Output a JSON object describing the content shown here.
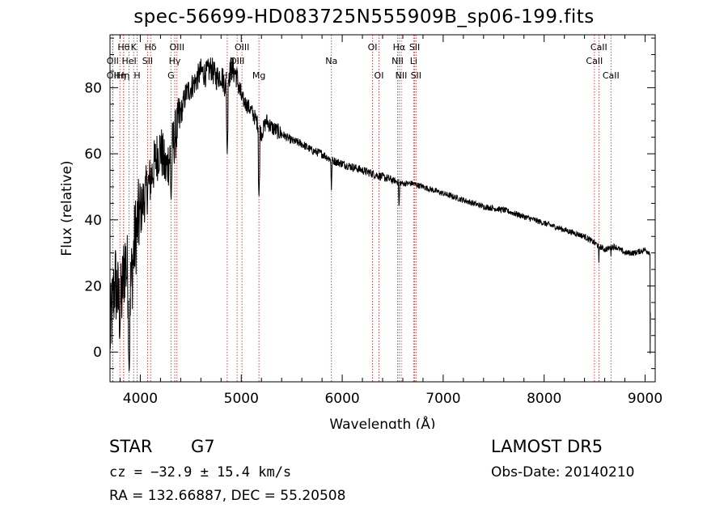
{
  "header": {
    "title": "spec-56699-HD083725N555909B_sp06-199.fits"
  },
  "info": {
    "obj_class": "STAR",
    "subclass": "G7",
    "survey": "LAMOST DR5",
    "cz": "cz = −32.9 ± 15.4 km/s",
    "obs_date": "Obs-Date: 20140210",
    "radec": "RA = 132.66887, DEC =  55.20508"
  },
  "chart_data": {
    "type": "line",
    "xlabel": "Wavelength (Å)",
    "ylabel": "Flux (relative)",
    "xlim": [
      3700,
      9100
    ],
    "ylim": [
      -9,
      96
    ],
    "xticks": [
      4000,
      5000,
      6000,
      7000,
      8000,
      9000
    ],
    "yticks": [
      0,
      20,
      40,
      60,
      80
    ],
    "grid": false,
    "line_color": "#000000",
    "marker_color": "#cc3333",
    "series": [
      {
        "x": [
          3700,
          3750,
          3800,
          3850,
          3900,
          3950,
          4000,
          4050,
          4100,
          4150,
          4200,
          4250,
          4300,
          4350,
          4400,
          4450,
          4500,
          4550,
          4600,
          4650,
          4700,
          4750,
          4800,
          4850,
          4900,
          4950,
          5000,
          5050,
          5100,
          5150,
          5200,
          5250,
          5300,
          5400,
          5500,
          5600,
          5700,
          5800,
          5900,
          6000,
          6100,
          6200,
          6300,
          6400,
          6500,
          6600,
          6700,
          6800,
          6900,
          7000,
          7200,
          7400,
          7600,
          7800,
          8000,
          8200,
          8400,
          8500,
          8600,
          8700,
          8800,
          8900,
          9000,
          9050
        ],
        "y": [
          5,
          22,
          12,
          28,
          18,
          35,
          42,
          48,
          52,
          58,
          62,
          55,
          60,
          66,
          72,
          78,
          80,
          82,
          85,
          84,
          86,
          83,
          84,
          80,
          86,
          84,
          77,
          75,
          73,
          70,
          66,
          70,
          68,
          66,
          64,
          63,
          61,
          60,
          58,
          57,
          56,
          55,
          54,
          53,
          52,
          51,
          51,
          50,
          49,
          48,
          46,
          44,
          43,
          41,
          39,
          37,
          35,
          33,
          31,
          32,
          30,
          30,
          31,
          30
        ]
      }
    ],
    "dips": [
      {
        "x": 3890,
        "y": -7
      },
      {
        "x": 4305,
        "y": 45
      },
      {
        "x": 4861,
        "y": 60
      },
      {
        "x": 5175,
        "y": 46
      },
      {
        "x": 5893,
        "y": 49
      },
      {
        "x": 6563,
        "y": 43
      },
      {
        "x": 8542,
        "y": 27
      },
      {
        "x": 8662,
        "y": 29
      }
    ],
    "lines": [
      {
        "x": 3727,
        "label": "OII",
        "row": 1
      },
      {
        "x": 3727,
        "label": "OII",
        "row": 2
      },
      {
        "x": 3798,
        "label": "Hη",
        "row": 2
      },
      {
        "x": 3835,
        "label": "Hη",
        "row": 2
      },
      {
        "x": 3835,
        "label": "Hθ",
        "row": 0
      },
      {
        "x": 3889,
        "label": "HeI",
        "row": 1
      },
      {
        "x": 3934,
        "label": "K",
        "row": 0
      },
      {
        "x": 3969,
        "label": "H",
        "row": 2
      },
      {
        "x": 4072,
        "label": "SII",
        "row": 1
      },
      {
        "x": 4102,
        "label": "Hδ",
        "row": 0
      },
      {
        "x": 4304,
        "label": "G",
        "row": 2
      },
      {
        "x": 4341,
        "label": "Hγ",
        "row": 1
      },
      {
        "x": 4363,
        "label": "OIII",
        "row": 0
      },
      {
        "x": 4861,
        "label": "Hβ",
        "row": 2
      },
      {
        "x": 4959,
        "label": "OIII",
        "row": 1
      },
      {
        "x": 5007,
        "label": "OIII",
        "row": 0
      },
      {
        "x": 5175,
        "label": "Mg",
        "row": 2
      },
      {
        "x": 5893,
        "label": "Na",
        "row": 1
      },
      {
        "x": 6300,
        "label": "OI",
        "row": 0
      },
      {
        "x": 6364,
        "label": "OI",
        "row": 2
      },
      {
        "x": 6548,
        "label": "NII",
        "row": 1
      },
      {
        "x": 6563,
        "label": "Hα",
        "row": 0
      },
      {
        "x": 6584,
        "label": "NII",
        "row": 2
      },
      {
        "x": 6707,
        "label": "Li",
        "row": 1
      },
      {
        "x": 6717,
        "label": "SII",
        "row": 0
      },
      {
        "x": 6731,
        "label": "SII",
        "row": 2
      },
      {
        "x": 8498,
        "label": "CaII",
        "row": 1
      },
      {
        "x": 8542,
        "label": "CaII",
        "row": 0
      },
      {
        "x": 8662,
        "label": "CaII",
        "row": 2
      }
    ]
  }
}
